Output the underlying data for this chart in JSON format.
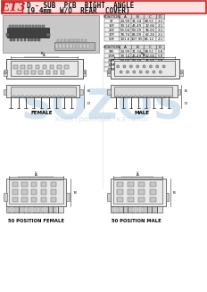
{
  "title_code": "E13",
  "title_line1": "D - SUB  PCB  RIGHT  ANGLE",
  "title_line2": "(9.4mm  W/O  REAR  COVER)",
  "bg_color": "#ffffff",
  "header_bg": "#ffe0e0",
  "border_color": "#cc2222",
  "table1_headers": [
    "POSITION",
    "A",
    "B",
    "C",
    "D"
  ],
  "table1_rows": [
    [
      "9F",
      "24.99",
      "31.34",
      "08.51",
      "2.1"
    ],
    [
      "15F",
      "39.14",
      "45.49",
      "22.66",
      "2.1"
    ],
    [
      "25F",
      "53.04",
      "59.39",
      "36.56",
      "2.1"
    ],
    [
      "37F",
      "78.74",
      "85.09",
      "62.26",
      "2.1"
    ],
    [
      "50F",
      "101.6",
      "107.95",
      "85.12",
      "2.1"
    ]
  ],
  "table2_headers": [
    "POSITION",
    "A",
    "B",
    "C",
    "D"
  ],
  "table2_rows": [
    [
      "9M",
      "24.99",
      "31.34",
      "08.51",
      "5.8"
    ],
    [
      "15M",
      "39.14",
      "45.49",
      "22.66",
      "5.8"
    ],
    [
      "25M",
      "53.04",
      "59.39",
      "36.56",
      "5.8"
    ],
    [
      "37M",
      "78.74",
      "85.09",
      "62.26",
      "5.8"
    ],
    [
      "50M",
      "101.6",
      "107.95",
      "85.12",
      "5.8"
    ]
  ],
  "label_female": "FEMALE",
  "label_male": "MALE",
  "label_50f": "50 POSITION FEMALE",
  "label_50m": "50 POSITION MALE",
  "watermark": "SOZOS",
  "watermark2": "электронный  каталог"
}
